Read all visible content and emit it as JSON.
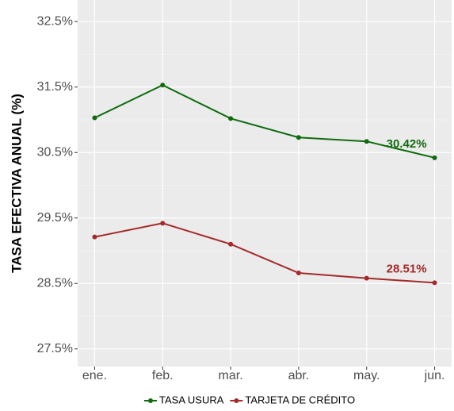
{
  "chart_data": {
    "type": "line",
    "y_label": "TASA EFECTIVA ANUAL (%)",
    "categories": [
      "ene.",
      "feb.",
      "mar.",
      "abr.",
      "may.",
      "jun."
    ],
    "series": [
      {
        "name": "TASA USURA",
        "color": "#0e6b0e",
        "values": [
          31.03,
          31.53,
          31.02,
          30.73,
          30.67,
          30.42
        ],
        "value_labels": [
          null,
          null,
          null,
          null,
          null,
          "30.42%"
        ]
      },
      {
        "name": "TARJETA DE CRÉDITO",
        "color": "#a52a2a",
        "values": [
          29.21,
          29.42,
          29.1,
          28.66,
          28.58,
          28.51
        ],
        "value_labels": [
          null,
          null,
          null,
          null,
          null,
          "28.51%"
        ]
      }
    ],
    "ylim": [
      27.23,
      32.83
    ],
    "yticks": [
      {
        "value": 27.5,
        "label": "27.5%"
      },
      {
        "value": 28.5,
        "label": "28.5%"
      },
      {
        "value": 29.5,
        "label": "29.5%"
      },
      {
        "value": 30.5,
        "label": "30.5%"
      },
      {
        "value": 31.5,
        "label": "31.5%"
      },
      {
        "value": 32.5,
        "label": "32.5%"
      }
    ],
    "grid": true,
    "legend": "bottom"
  }
}
